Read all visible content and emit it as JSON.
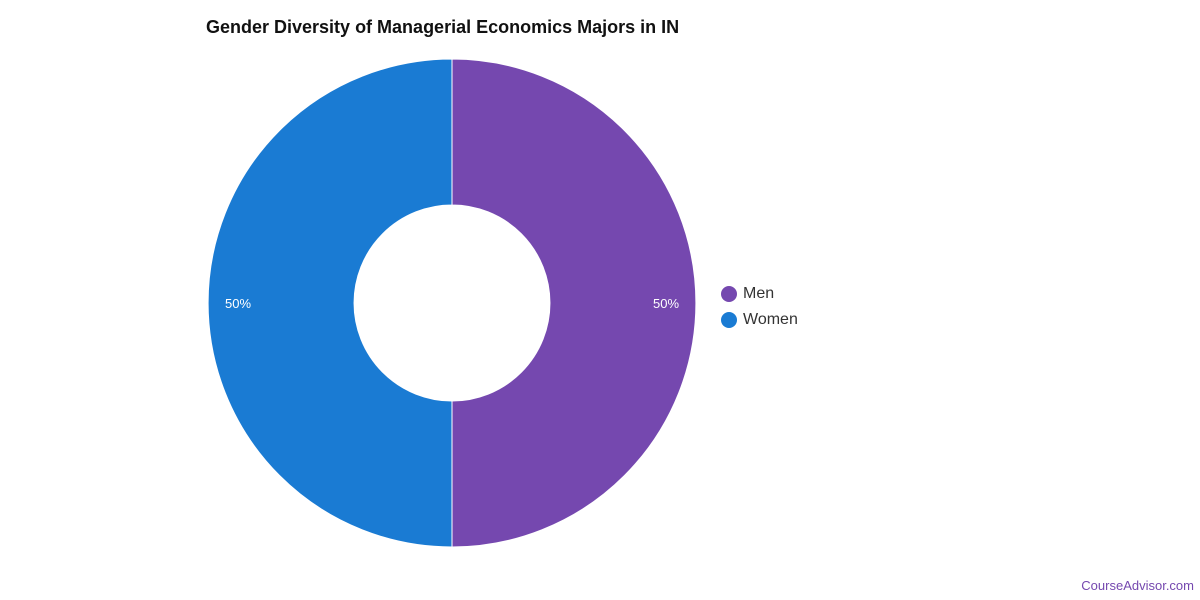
{
  "chart_data": {
    "type": "pie",
    "donut": true,
    "title": "Gender Diversity of Managerial Economics Majors in IN",
    "slices": [
      {
        "name": "Men",
        "value": 50,
        "label": "50%",
        "color": "#7548AF"
      },
      {
        "name": "Women",
        "value": 50,
        "label": "50%",
        "color": "#1A7BD3"
      }
    ],
    "legend_position": "right"
  },
  "footer": {
    "text": "CourseAdvisor.com"
  }
}
